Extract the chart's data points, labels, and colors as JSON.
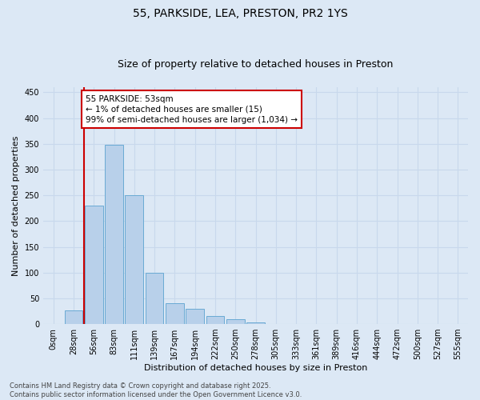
{
  "title": "55, PARKSIDE, LEA, PRESTON, PR2 1YS",
  "subtitle": "Size of property relative to detached houses in Preston",
  "xlabel": "Distribution of detached houses by size in Preston",
  "ylabel": "Number of detached properties",
  "bar_labels": [
    "0sqm",
    "28sqm",
    "56sqm",
    "83sqm",
    "111sqm",
    "139sqm",
    "167sqm",
    "194sqm",
    "222sqm",
    "250sqm",
    "278sqm",
    "305sqm",
    "333sqm",
    "361sqm",
    "389sqm",
    "416sqm",
    "444sqm",
    "472sqm",
    "500sqm",
    "527sqm",
    "555sqm"
  ],
  "bar_values": [
    0,
    27,
    230,
    348,
    250,
    100,
    40,
    30,
    15,
    10,
    4,
    0,
    0,
    0,
    0,
    0,
    0,
    0,
    0,
    0,
    0
  ],
  "bar_color": "#b8d0ea",
  "bar_edge_color": "#6aaad4",
  "vline_color": "#cc0000",
  "vline_pos": 1.5,
  "annotation_text": "55 PARKSIDE: 53sqm\n← 1% of detached houses are smaller (15)\n99% of semi-detached houses are larger (1,034) →",
  "annotation_box_color": "#ffffff",
  "annotation_box_edge": "#cc0000",
  "ylim": [
    0,
    460
  ],
  "yticks": [
    0,
    50,
    100,
    150,
    200,
    250,
    300,
    350,
    400,
    450
  ],
  "grid_color": "#c8d8ec",
  "background_color": "#dce8f5",
  "footer_text": "Contains HM Land Registry data © Crown copyright and database right 2025.\nContains public sector information licensed under the Open Government Licence v3.0.",
  "title_fontsize": 10,
  "subtitle_fontsize": 9,
  "axis_label_fontsize": 8,
  "tick_fontsize": 7,
  "annotation_fontsize": 7.5,
  "footer_fontsize": 6
}
